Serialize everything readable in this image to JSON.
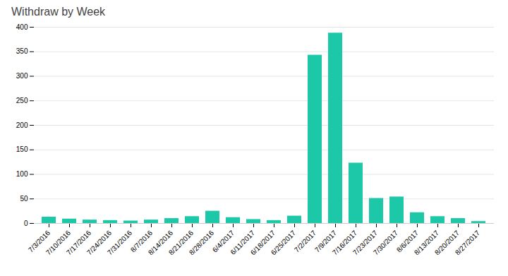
{
  "chart_data": {
    "type": "bar",
    "title": "Withdraw by Week",
    "categories": [
      "7/3/2016",
      "7/10/2016",
      "7/17/2016",
      "7/24/2016",
      "7/31/2016",
      "8/7/2016",
      "8/14/2016",
      "8/21/2016",
      "8/28/2016",
      "6/4/2017",
      "6/11/2017",
      "6/18/2017",
      "6/25/2017",
      "7/2/2017",
      "7/9/2017",
      "7/16/2017",
      "7/23/2017",
      "7/30/2017",
      "8/6/2017",
      "8/13/2017",
      "8/20/2017",
      "8/27/2017"
    ],
    "values": [
      13,
      9,
      7,
      6,
      5,
      7,
      10,
      14,
      25,
      12,
      8,
      6,
      15,
      343,
      388,
      123,
      51,
      54,
      22,
      14,
      10,
      4
    ],
    "color": "#1DC8A8",
    "ylim": [
      0,
      400
    ],
    "yticks": [
      0,
      50,
      100,
      150,
      200,
      250,
      300,
      350,
      400
    ],
    "grid": true
  }
}
